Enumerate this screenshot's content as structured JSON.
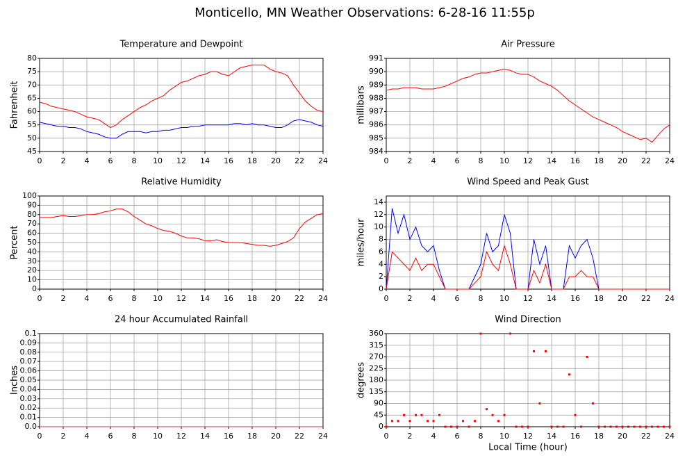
{
  "title": "Monticello, MN Weather Observations: 6-28-16 11:55p",
  "chart_data": [
    {
      "type": "line",
      "title": "Temperature and Dewpoint",
      "ylabel": "Fahrenheit",
      "x": [
        0,
        0.5,
        1,
        1.5,
        2,
        2.5,
        3,
        3.5,
        4,
        4.5,
        5,
        5.5,
        6,
        6.5,
        7,
        7.5,
        8,
        8.5,
        9,
        9.5,
        10,
        10.5,
        11,
        11.5,
        12,
        12.5,
        13,
        13.5,
        14,
        14.5,
        15,
        15.5,
        16,
        16.5,
        17,
        17.5,
        18,
        18.5,
        19,
        19.5,
        20,
        20.5,
        21,
        21.5,
        22,
        22.5,
        23,
        23.5,
        24
      ],
      "series": [
        {
          "color": "#ff0000",
          "values": [
            63.5,
            63,
            62,
            61.5,
            61,
            60.5,
            60,
            59,
            58,
            57.5,
            57,
            55.5,
            54,
            55,
            57,
            58.5,
            60,
            61.5,
            62.5,
            64,
            65,
            66,
            68,
            69.5,
            71,
            71.5,
            72.5,
            73.5,
            74,
            75,
            75,
            74,
            73.5,
            75,
            76.5,
            77,
            77.5,
            77.5,
            77.5,
            76,
            75,
            74.5,
            73.5,
            70,
            67,
            64,
            62,
            60.5,
            60
          ]
        },
        {
          "color": "#0000ff",
          "values": [
            56,
            55.5,
            55,
            54.5,
            54.5,
            54,
            54,
            53.5,
            52.5,
            52,
            51.5,
            50.5,
            50,
            50,
            51.5,
            52.5,
            52.5,
            52.5,
            52,
            52.5,
            52.5,
            53,
            53,
            53.5,
            54,
            54,
            54.5,
            54.5,
            55,
            55,
            55,
            55,
            55,
            55.5,
            55.5,
            55,
            55.5,
            55,
            55,
            54.5,
            54,
            54,
            55,
            56.5,
            57,
            56.5,
            56,
            55,
            54.5
          ]
        }
      ],
      "xlim": [
        0,
        24
      ],
      "xticks": [
        0,
        2,
        4,
        6,
        8,
        10,
        12,
        14,
        16,
        18,
        20,
        22,
        24
      ],
      "ylim": [
        45,
        80
      ],
      "yticks": [
        45,
        50,
        55,
        60,
        65,
        70,
        75,
        80
      ],
      "grid": true
    },
    {
      "type": "line",
      "title": "Air Pressure",
      "ylabel": "millibars",
      "x": [
        0,
        0.5,
        1,
        1.5,
        2,
        2.5,
        3,
        3.5,
        4,
        4.5,
        5,
        5.5,
        6,
        6.5,
        7,
        7.5,
        8,
        8.5,
        9,
        9.5,
        10,
        10.5,
        11,
        11.5,
        12,
        12.5,
        13,
        13.5,
        14,
        14.5,
        15,
        15.5,
        16,
        16.5,
        17,
        17.5,
        18,
        18.5,
        19,
        19.5,
        20,
        20.5,
        21,
        21.5,
        22,
        22.5,
        23,
        23.5,
        24
      ],
      "series": [
        {
          "color": "#ff0000",
          "values": [
            988.6,
            988.7,
            988.7,
            988.8,
            988.8,
            988.8,
            988.7,
            988.7,
            988.7,
            988.8,
            988.9,
            989.1,
            989.3,
            989.5,
            989.6,
            989.8,
            989.9,
            989.9,
            990.0,
            990.1,
            990.2,
            990.1,
            989.9,
            989.8,
            989.8,
            989.6,
            989.3,
            989.1,
            988.9,
            988.6,
            988.2,
            987.8,
            987.5,
            987.2,
            986.9,
            986.6,
            986.4,
            986.2,
            986.0,
            985.8,
            985.5,
            985.3,
            985.1,
            984.9,
            985.0,
            984.7,
            985.2,
            985.7,
            986.0
          ]
        }
      ],
      "xlim": [
        0,
        24
      ],
      "xticks": [
        0,
        2,
        4,
        6,
        8,
        10,
        12,
        14,
        16,
        18,
        20,
        22,
        24
      ],
      "ylim": [
        984,
        991
      ],
      "yticks": [
        984,
        985,
        986,
        987,
        988,
        989,
        990,
        991
      ],
      "grid": true
    },
    {
      "type": "line",
      "title": "Relative Humidity",
      "ylabel": "Percent",
      "x": [
        0,
        0.5,
        1,
        1.5,
        2,
        2.5,
        3,
        3.5,
        4,
        4.5,
        5,
        5.5,
        6,
        6.5,
        7,
        7.5,
        8,
        8.5,
        9,
        9.5,
        10,
        10.5,
        11,
        11.5,
        12,
        12.5,
        13,
        13.5,
        14,
        14.5,
        15,
        15.5,
        16,
        16.5,
        17,
        17.5,
        18,
        18.5,
        19,
        19.5,
        20,
        20.5,
        21,
        21.5,
        22,
        22.5,
        23,
        23.5,
        24
      ],
      "series": [
        {
          "color": "#ff0000",
          "values": [
            77,
            77,
            77,
            78,
            79,
            78,
            78,
            79,
            80,
            80,
            81,
            83,
            84,
            86,
            86,
            83,
            78,
            74,
            70,
            68,
            65,
            63,
            62,
            60,
            57,
            55,
            55,
            54,
            52,
            52,
            53,
            51,
            50,
            50,
            50,
            49,
            48,
            47,
            47,
            46,
            47,
            49,
            51,
            55,
            65,
            72,
            76,
            80,
            81
          ]
        }
      ],
      "xlim": [
        0,
        24
      ],
      "xticks": [
        0,
        2,
        4,
        6,
        8,
        10,
        12,
        14,
        16,
        18,
        20,
        22,
        24
      ],
      "ylim": [
        0,
        100
      ],
      "yticks": [
        0,
        10,
        20,
        30,
        40,
        50,
        60,
        70,
        80,
        90,
        100
      ],
      "grid": true
    },
    {
      "type": "line",
      "title": "Wind Speed and Peak Gust",
      "ylabel": "miles/hour",
      "x": [
        0,
        0.5,
        1,
        1.5,
        2,
        2.5,
        3,
        3.5,
        4,
        4.5,
        5,
        5.5,
        6,
        6.5,
        7,
        7.5,
        8,
        8.5,
        9,
        9.5,
        10,
        10.5,
        11,
        11.5,
        12,
        12.5,
        13,
        13.5,
        14,
        14.5,
        15,
        15.5,
        16,
        16.5,
        17,
        17.5,
        18,
        18.5,
        19,
        19.5,
        20,
        20.5,
        21,
        21.5,
        22,
        22.5,
        23,
        23.5,
        24
      ],
      "series": [
        {
          "color": "#0000ff",
          "values": [
            0,
            13,
            9,
            12,
            8,
            10,
            7,
            6,
            7,
            3,
            0,
            0,
            0,
            0,
            0,
            2,
            4,
            9,
            6,
            7,
            12,
            9,
            0,
            0,
            0,
            8,
            4,
            7,
            0,
            0,
            0,
            7,
            5,
            7,
            8,
            5,
            0,
            0,
            0,
            0,
            0,
            0,
            0,
            0,
            0,
            0,
            0,
            0,
            0
          ]
        },
        {
          "color": "#ff0000",
          "values": [
            0,
            6,
            5,
            4,
            3,
            5,
            3,
            4,
            4,
            2,
            0,
            0,
            0,
            0,
            0,
            1,
            2,
            6,
            4,
            3,
            7,
            4,
            0,
            0,
            0,
            3,
            1,
            4,
            0,
            0,
            0,
            2,
            2,
            3,
            2,
            2,
            0,
            0,
            0,
            0,
            0,
            0,
            0,
            0,
            0,
            0,
            0,
            0,
            0
          ]
        }
      ],
      "xlim": [
        0,
        24
      ],
      "xticks": [
        0,
        2,
        4,
        6,
        8,
        10,
        12,
        14,
        16,
        18,
        20,
        22,
        24
      ],
      "ylim": [
        0,
        15
      ],
      "yticks": [
        0,
        2,
        4,
        6,
        8,
        10,
        12,
        14
      ],
      "grid": true
    },
    {
      "type": "line",
      "title": "24 hour Accumulated Rainfall",
      "ylabel": "Inches",
      "x": [
        0,
        24
      ],
      "series": [
        {
          "color": "#cc3366",
          "values": [
            0,
            0
          ]
        }
      ],
      "xlim": [
        0,
        24
      ],
      "xticks": [
        0,
        2,
        4,
        6,
        8,
        10,
        12,
        14,
        16,
        18,
        20,
        22,
        24
      ],
      "ylim": [
        0,
        0.1
      ],
      "yticks": [
        {
          "value": 0,
          "label": "0.0"
        },
        0.01,
        0.02,
        0.03,
        0.04,
        0.05,
        0.06,
        0.07,
        0.08,
        0.09,
        0.1
      ],
      "grid": true
    },
    {
      "type": "scatter",
      "title": "Wind Direction",
      "ylabel": "degrees",
      "xlabel": "Local Time (hour)",
      "x": [
        0,
        0.5,
        1,
        1.5,
        2,
        2.5,
        3,
        3.5,
        4,
        4.5,
        5,
        5.5,
        6,
        6.5,
        7,
        7.5,
        8,
        8.5,
        9,
        9.5,
        10,
        10.5,
        11,
        11.5,
        12,
        12.5,
        13,
        13.5,
        14,
        14.5,
        15,
        15.5,
        16,
        16.5,
        17,
        17.5,
        18,
        18.5,
        19,
        19.5,
        20,
        20.5,
        21,
        21.5,
        22,
        22.5,
        23,
        23.5,
        24
      ],
      "series": [
        {
          "color": "#ff0000",
          "values": [
            0,
            22,
            22,
            45,
            22,
            45,
            45,
            22,
            22,
            45,
            0,
            0,
            0,
            22,
            0,
            22,
            360,
            68,
            45,
            22,
            45,
            360,
            0,
            0,
            0,
            292,
            90,
            292,
            0,
            0,
            0,
            202,
            45,
            0,
            270,
            90,
            0,
            0,
            0,
            0,
            0,
            0,
            0,
            0,
            0,
            0,
            0,
            0,
            0
          ]
        }
      ],
      "xlim": [
        0,
        24
      ],
      "xticks": [
        0,
        2,
        4,
        6,
        8,
        10,
        12,
        14,
        16,
        18,
        20,
        22,
        24
      ],
      "ylim": [
        0,
        360
      ],
      "yticks": [
        0,
        45,
        90,
        135,
        180,
        225,
        270,
        315,
        360
      ],
      "grid": true
    }
  ]
}
